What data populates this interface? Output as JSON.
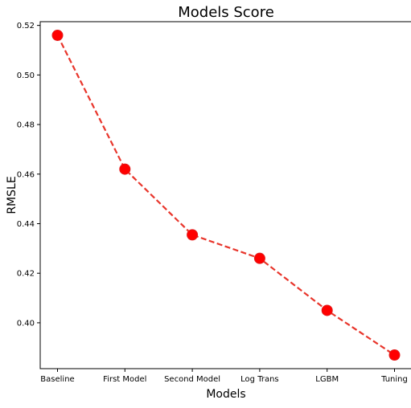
{
  "chart_data": {
    "type": "line",
    "title": "Models Score",
    "xlabel": "Models",
    "ylabel": "RMSLE",
    "categories": [
      "Baseline",
      "First Model",
      "Second Model",
      "Log Trans",
      "LGBM",
      "Tuning"
    ],
    "series": [
      {
        "values": [
          0.516,
          0.462,
          0.4355,
          0.426,
          0.405,
          0.387
        ],
        "color": "#e8352b",
        "marker_color": "#ff0000",
        "line_style": "dashed"
      }
    ],
    "ylim": [
      0.3815,
      0.5215
    ],
    "yticks": [
      "0.40",
      "0.42",
      "0.44",
      "0.46",
      "0.48",
      "0.50",
      "0.52"
    ],
    "grid": false,
    "legend": "none"
  }
}
